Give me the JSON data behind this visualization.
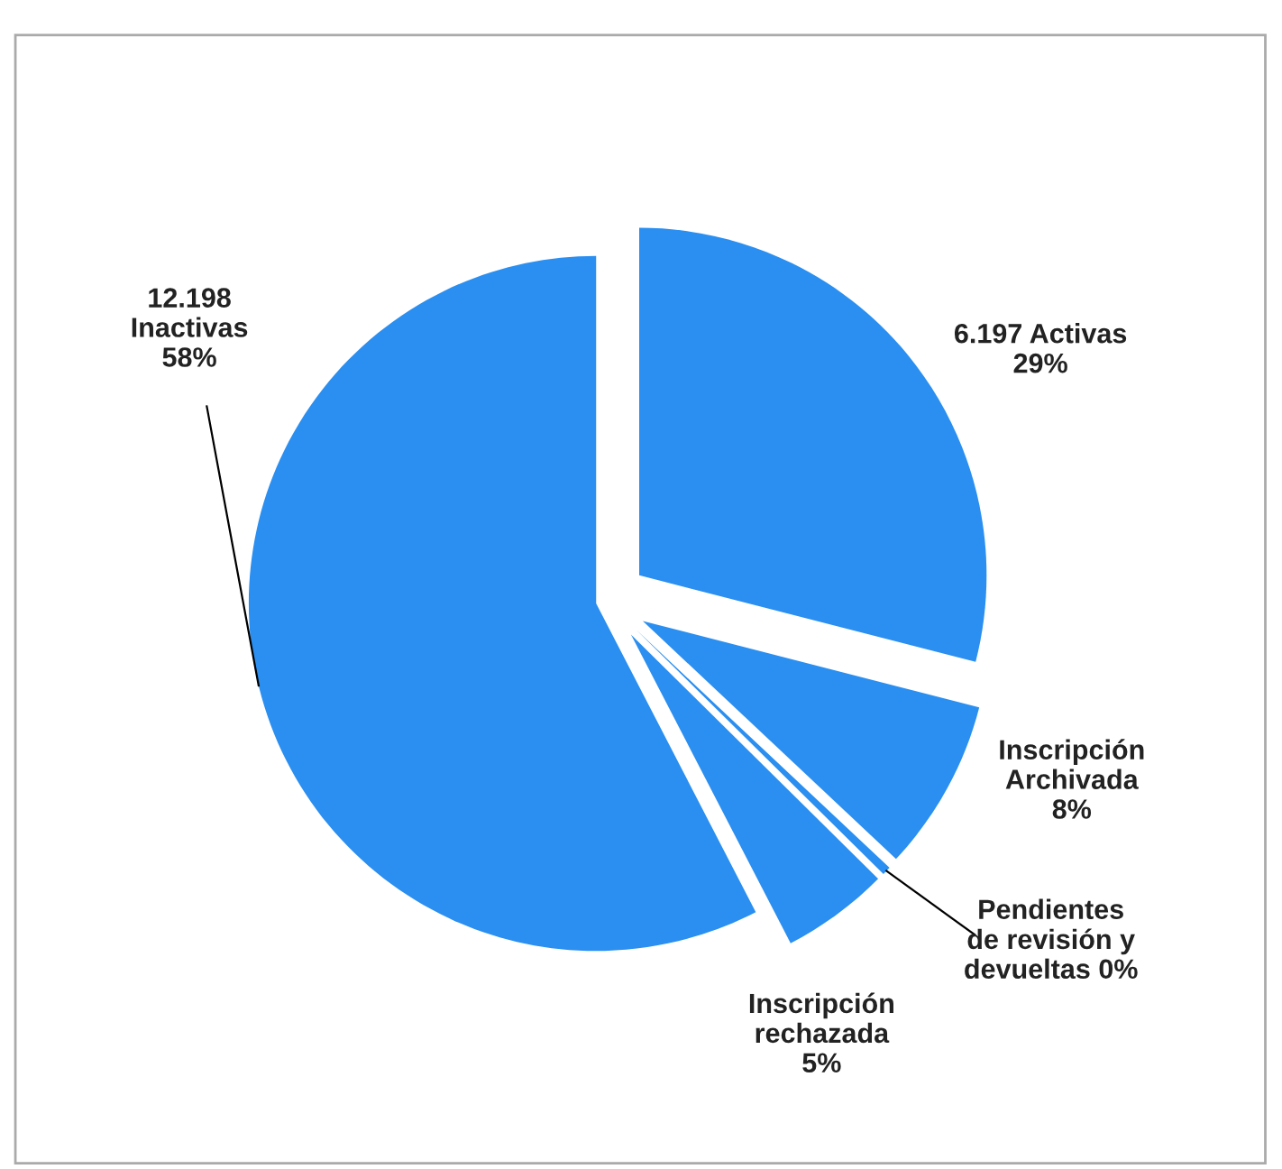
{
  "chart_data": {
    "type": "pie",
    "categories": [
      "6.197 Activas\n29%",
      "Inscripción\nArchivada\n8%",
      "Pendientes\nde revisión y\ndevueltas 0%",
      "Inscripción\nrechazada\n5%",
      "12.198\nInactivas\n58%"
    ],
    "values": [
      29,
      8,
      0.4,
      5,
      57.6
    ],
    "colors": [
      "#2a8ff0",
      "#2a8ff0",
      "#2a8ff0",
      "#2a8ff0",
      "#2a8ff0"
    ]
  }
}
